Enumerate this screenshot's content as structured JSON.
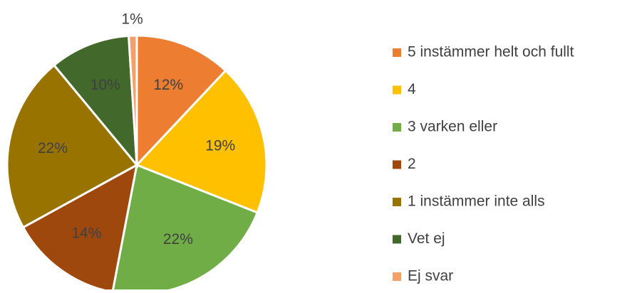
{
  "chart_data": {
    "type": "pie",
    "categories": [
      "5 instämmer helt och fullt",
      "4",
      "3 varken eller",
      "2",
      "1 instämmer inte alls",
      "Vet ej",
      "Ej svar"
    ],
    "values": [
      12,
      19,
      22,
      14,
      22,
      10,
      1
    ],
    "value_labels": [
      "12%",
      "19%",
      "22%",
      "14%",
      "22%",
      "10%",
      "1%"
    ],
    "colors": [
      "#ED7D31",
      "#FFC000",
      "#70AD47",
      "#9E480E",
      "#997300",
      "#43682B",
      "#F4A06B"
    ],
    "legend": "right"
  }
}
